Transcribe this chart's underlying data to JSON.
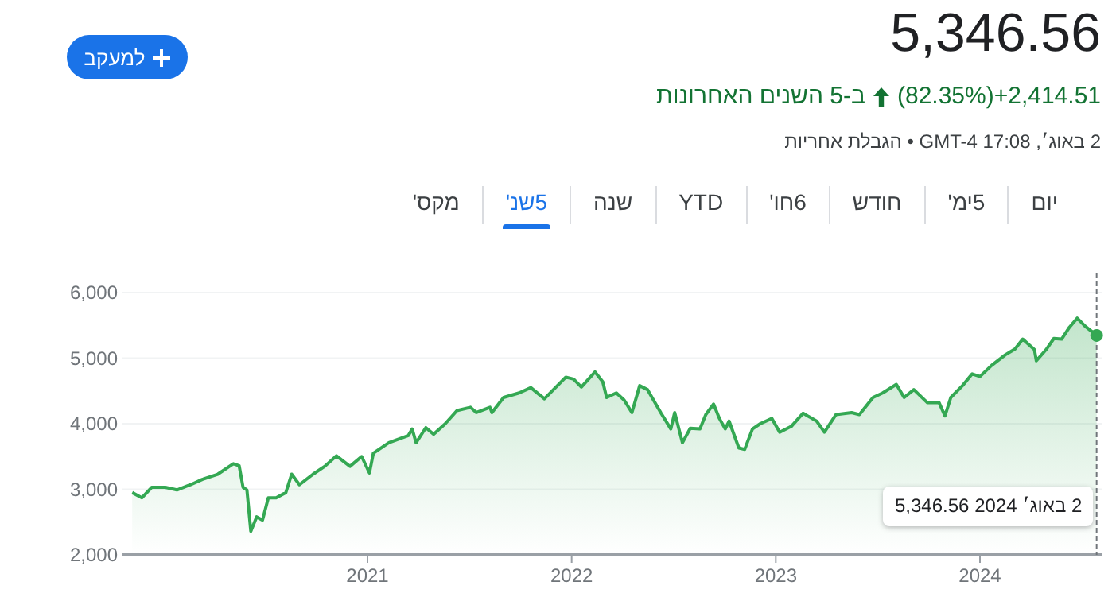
{
  "chart_data": {
    "type": "area",
    "title": "5,346.56",
    "subtitle": "(82.35%)+2,414.51",
    "annotations": [
      "2 באוג׳ 2024 5,346.56",
      "ב-5 השנים האחרונות",
      "2 באוג׳, 17:08 GMT-4 • הגבלת אחריות",
      "למעקב",
      "יום",
      "5ימ'",
      "חודש",
      "6חו'",
      "YTD",
      "שנה",
      "5שנ'",
      "מקס'"
    ],
    "x": [
      2019.61,
      2019.66,
      2019.71,
      2019.78,
      2019.84,
      2019.91,
      2019.97,
      2020.05,
      2020.13,
      2020.16,
      2020.18,
      2020.2,
      2020.22,
      2020.25,
      2020.28,
      2020.31,
      2020.35,
      2020.4,
      2020.43,
      2020.47,
      2020.54,
      2020.6,
      2020.66,
      2020.73,
      2020.79,
      2020.83,
      2020.85,
      2020.93,
      2021.03,
      2021.05,
      2021.07,
      2021.12,
      2021.16,
      2021.22,
      2021.28,
      2021.35,
      2021.38,
      2021.45,
      2021.46,
      2021.52,
      2021.6,
      2021.66,
      2021.73,
      2021.84,
      2021.88,
      2021.92,
      2021.99,
      2022.03,
      2022.05,
      2022.1,
      2022.14,
      2022.18,
      2022.22,
      2022.26,
      2022.33,
      2022.38,
      2022.4,
      2022.44,
      2022.48,
      2022.53,
      2022.56,
      2022.6,
      2022.63,
      2022.66,
      2022.68,
      2022.73,
      2022.76,
      2022.8,
      2022.84,
      2022.9,
      2022.94,
      2023.0,
      2023.06,
      2023.13,
      2023.17,
      2023.23,
      2023.31,
      2023.35,
      2023.42,
      2023.47,
      2023.54,
      2023.58,
      2023.63,
      2023.7,
      2023.76,
      2023.79,
      2023.82,
      2023.88,
      2023.93,
      2023.97,
      2024.03,
      2024.1,
      2024.15,
      2024.19,
      2024.25,
      2024.26,
      2024.31,
      2024.35,
      2024.39,
      2024.43,
      2024.47,
      2024.51,
      2024.57
    ],
    "series": [
      {
        "color": "#34a853",
        "values": [
          2950,
          2870,
          3030,
          3030,
          2990,
          3070,
          3150,
          3230,
          3390,
          3360,
          3030,
          2990,
          2360,
          2580,
          2530,
          2870,
          2870,
          2950,
          3230,
          3070,
          3230,
          3350,
          3510,
          3350,
          3500,
          3250,
          3550,
          3710,
          3820,
          3920,
          3710,
          3940,
          3840,
          4000,
          4200,
          4250,
          4170,
          4250,
          4170,
          4400,
          4470,
          4550,
          4380,
          4710,
          4680,
          4560,
          4790,
          4640,
          4400,
          4470,
          4360,
          4170,
          4580,
          4520,
          4160,
          3920,
          4170,
          3710,
          3930,
          3920,
          4140,
          4300,
          4080,
          3920,
          4040,
          3630,
          3610,
          3920,
          4000,
          4080,
          3870,
          3960,
          4160,
          4040,
          3870,
          4140,
          4170,
          4140,
          4400,
          4470,
          4600,
          4400,
          4520,
          4320,
          4320,
          4120,
          4400,
          4580,
          4760,
          4720,
          4890,
          5050,
          5140,
          5290,
          5130,
          4960,
          5130,
          5300,
          5290,
          5470,
          5610,
          5490,
          5346.56
        ]
      }
    ],
    "xlim": [
      2019.56,
      2024.6
    ],
    "xticks": [
      {
        "value": 2020.82,
        "label": "2021"
      },
      {
        "value": 2021.87,
        "label": "2022"
      },
      {
        "value": 2022.92,
        "label": "2023"
      },
      {
        "value": 2023.97,
        "label": "2024"
      }
    ],
    "ylim": [
      2000,
      6000
    ],
    "yticks": [
      {
        "value": 2000,
        "label": "2,000"
      },
      {
        "value": 3000,
        "label": "3,000"
      },
      {
        "value": 4000,
        "label": "4,000"
      },
      {
        "value": 5000,
        "label": "5,000"
      },
      {
        "value": 6000,
        "label": "6,000"
      }
    ],
    "grid": "y",
    "ref_lines": [
      {
        "axis": "x",
        "value": 2024.57,
        "line_style": "dashed",
        "color": "#70757a"
      }
    ]
  }
}
